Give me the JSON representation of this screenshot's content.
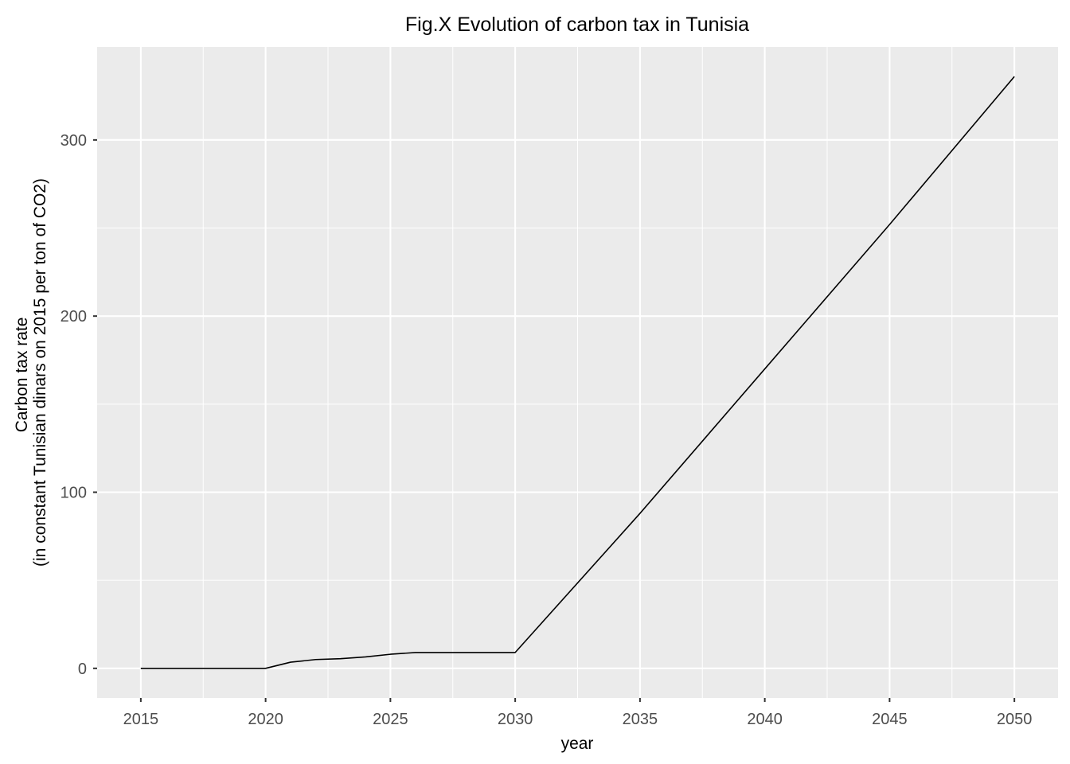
{
  "chart_data": {
    "type": "line",
    "title": "Fig.X Evolution of carbon tax in Tunisia",
    "xlabel": "year",
    "ylabel_lines": [
      "Carbon tax rate",
      "(in constant Tunisian dinars on 2015 per ton of CO2)"
    ],
    "xlim": [
      2013.25,
      2051.75
    ],
    "ylim": [
      -16.8,
      352.8
    ],
    "x_ticks": [
      2015,
      2020,
      2025,
      2030,
      2035,
      2040,
      2045,
      2050
    ],
    "x_tick_labels": [
      "2015",
      "2020",
      "2025",
      "2030",
      "2035",
      "2040",
      "2045",
      "2050"
    ],
    "y_ticks": [
      0,
      100,
      200,
      300
    ],
    "y_tick_labels": [
      "0",
      "100",
      "200",
      "300"
    ],
    "grid": true,
    "legend": "none",
    "colors": {
      "panel_background": "#ebebeb",
      "grid": "#ffffff",
      "line": "#000000"
    },
    "series": [
      {
        "x": [
          2015,
          2016,
          2017,
          2018,
          2019,
          2020,
          2021,
          2022,
          2023,
          2024,
          2025,
          2026,
          2027,
          2028,
          2029,
          2030,
          2035,
          2040,
          2045,
          2050
        ],
        "y": [
          0,
          0,
          0,
          0,
          0,
          0,
          3.5,
          5,
          5.5,
          6.5,
          8,
          9,
          9,
          9,
          9,
          9,
          88,
          170,
          252,
          336
        ]
      }
    ]
  }
}
